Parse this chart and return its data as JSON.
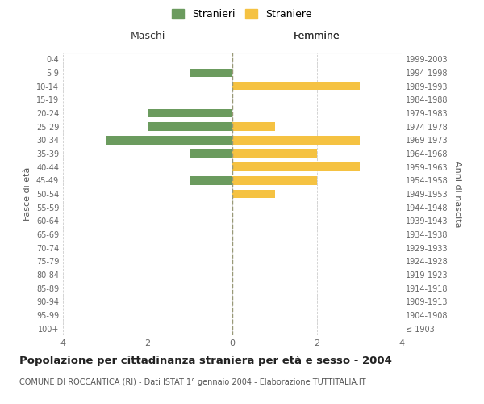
{
  "age_groups": [
    "100+",
    "95-99",
    "90-94",
    "85-89",
    "80-84",
    "75-79",
    "70-74",
    "65-69",
    "60-64",
    "55-59",
    "50-54",
    "45-49",
    "40-44",
    "35-39",
    "30-34",
    "25-29",
    "20-24",
    "15-19",
    "10-14",
    "5-9",
    "0-4"
  ],
  "birth_years": [
    "≤ 1903",
    "1904-1908",
    "1909-1913",
    "1914-1918",
    "1919-1923",
    "1924-1928",
    "1929-1933",
    "1934-1938",
    "1939-1943",
    "1944-1948",
    "1949-1953",
    "1954-1958",
    "1959-1963",
    "1964-1968",
    "1969-1973",
    "1974-1978",
    "1979-1983",
    "1984-1988",
    "1989-1993",
    "1994-1998",
    "1999-2003"
  ],
  "maschi": [
    0,
    0,
    0,
    0,
    0,
    0,
    0,
    0,
    0,
    0,
    0,
    1,
    0,
    1,
    3,
    2,
    2,
    0,
    0,
    1,
    0
  ],
  "femmine": [
    0,
    0,
    0,
    0,
    0,
    0,
    0,
    0,
    0,
    0,
    1,
    2,
    3,
    2,
    3,
    1,
    0,
    0,
    3,
    0,
    0
  ],
  "color_maschi": "#6b9b5e",
  "color_femmine": "#f5c242",
  "xlim": 4,
  "title": "Popolazione per cittadinanza straniera per età e sesso - 2004",
  "subtitle": "COMUNE DI ROCCANTICA (RI) - Dati ISTAT 1° gennaio 2004 - Elaborazione TUTTITALIA.IT",
  "ylabel_left": "Fasce di età",
  "ylabel_right": "Anni di nascita",
  "label_maschi": "Stranieri",
  "label_femmine": "Straniere",
  "header_left": "Maschi",
  "header_right": "Femmine",
  "bg_color": "#ffffff",
  "grid_color": "#cccccc"
}
